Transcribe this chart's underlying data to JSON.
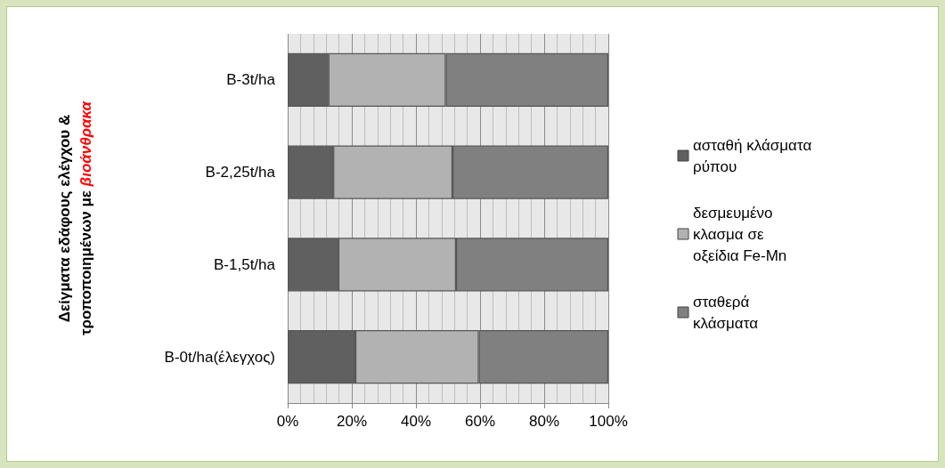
{
  "chart_data": {
    "type": "bar",
    "orientation": "horizontal",
    "stacked": true,
    "ylabel": "Δείγματα εδάφους ελέγχου & τροποποιημένων με βιοάνθρακα",
    "categories": [
      "B-3t/ha",
      "B-2,25t/ha",
      "B-1,5t/ha",
      "B-0t/ha(έλεγχος)"
    ],
    "series": [
      {
        "name": "ασταθή κλάσματα ρύπου",
        "color": "#606060",
        "values": [
          12.7,
          14.2,
          15.8,
          21.1
        ]
      },
      {
        "name": "δεσμευμένο κλασμα σε οξείδια Fe-Mn",
        "color": "#b2b2b2",
        "values": [
          36.6,
          37.2,
          36.7,
          38.5
        ]
      },
      {
        "name": "σταθερά κλάσματα",
        "color": "#808080",
        "values": [
          50.7,
          48.6,
          47.5,
          40.4
        ]
      }
    ],
    "xlim": [
      0,
      100
    ],
    "xticks": [
      {
        "value": 0,
        "label": "0%"
      },
      {
        "value": 20,
        "label": "20%"
      },
      {
        "value": 40,
        "label": "40%"
      },
      {
        "value": 60,
        "label": "60%"
      },
      {
        "value": 80,
        "label": "80%"
      },
      {
        "value": 100,
        "label": "100%"
      }
    ],
    "grid": "x",
    "legend": "right"
  }
}
